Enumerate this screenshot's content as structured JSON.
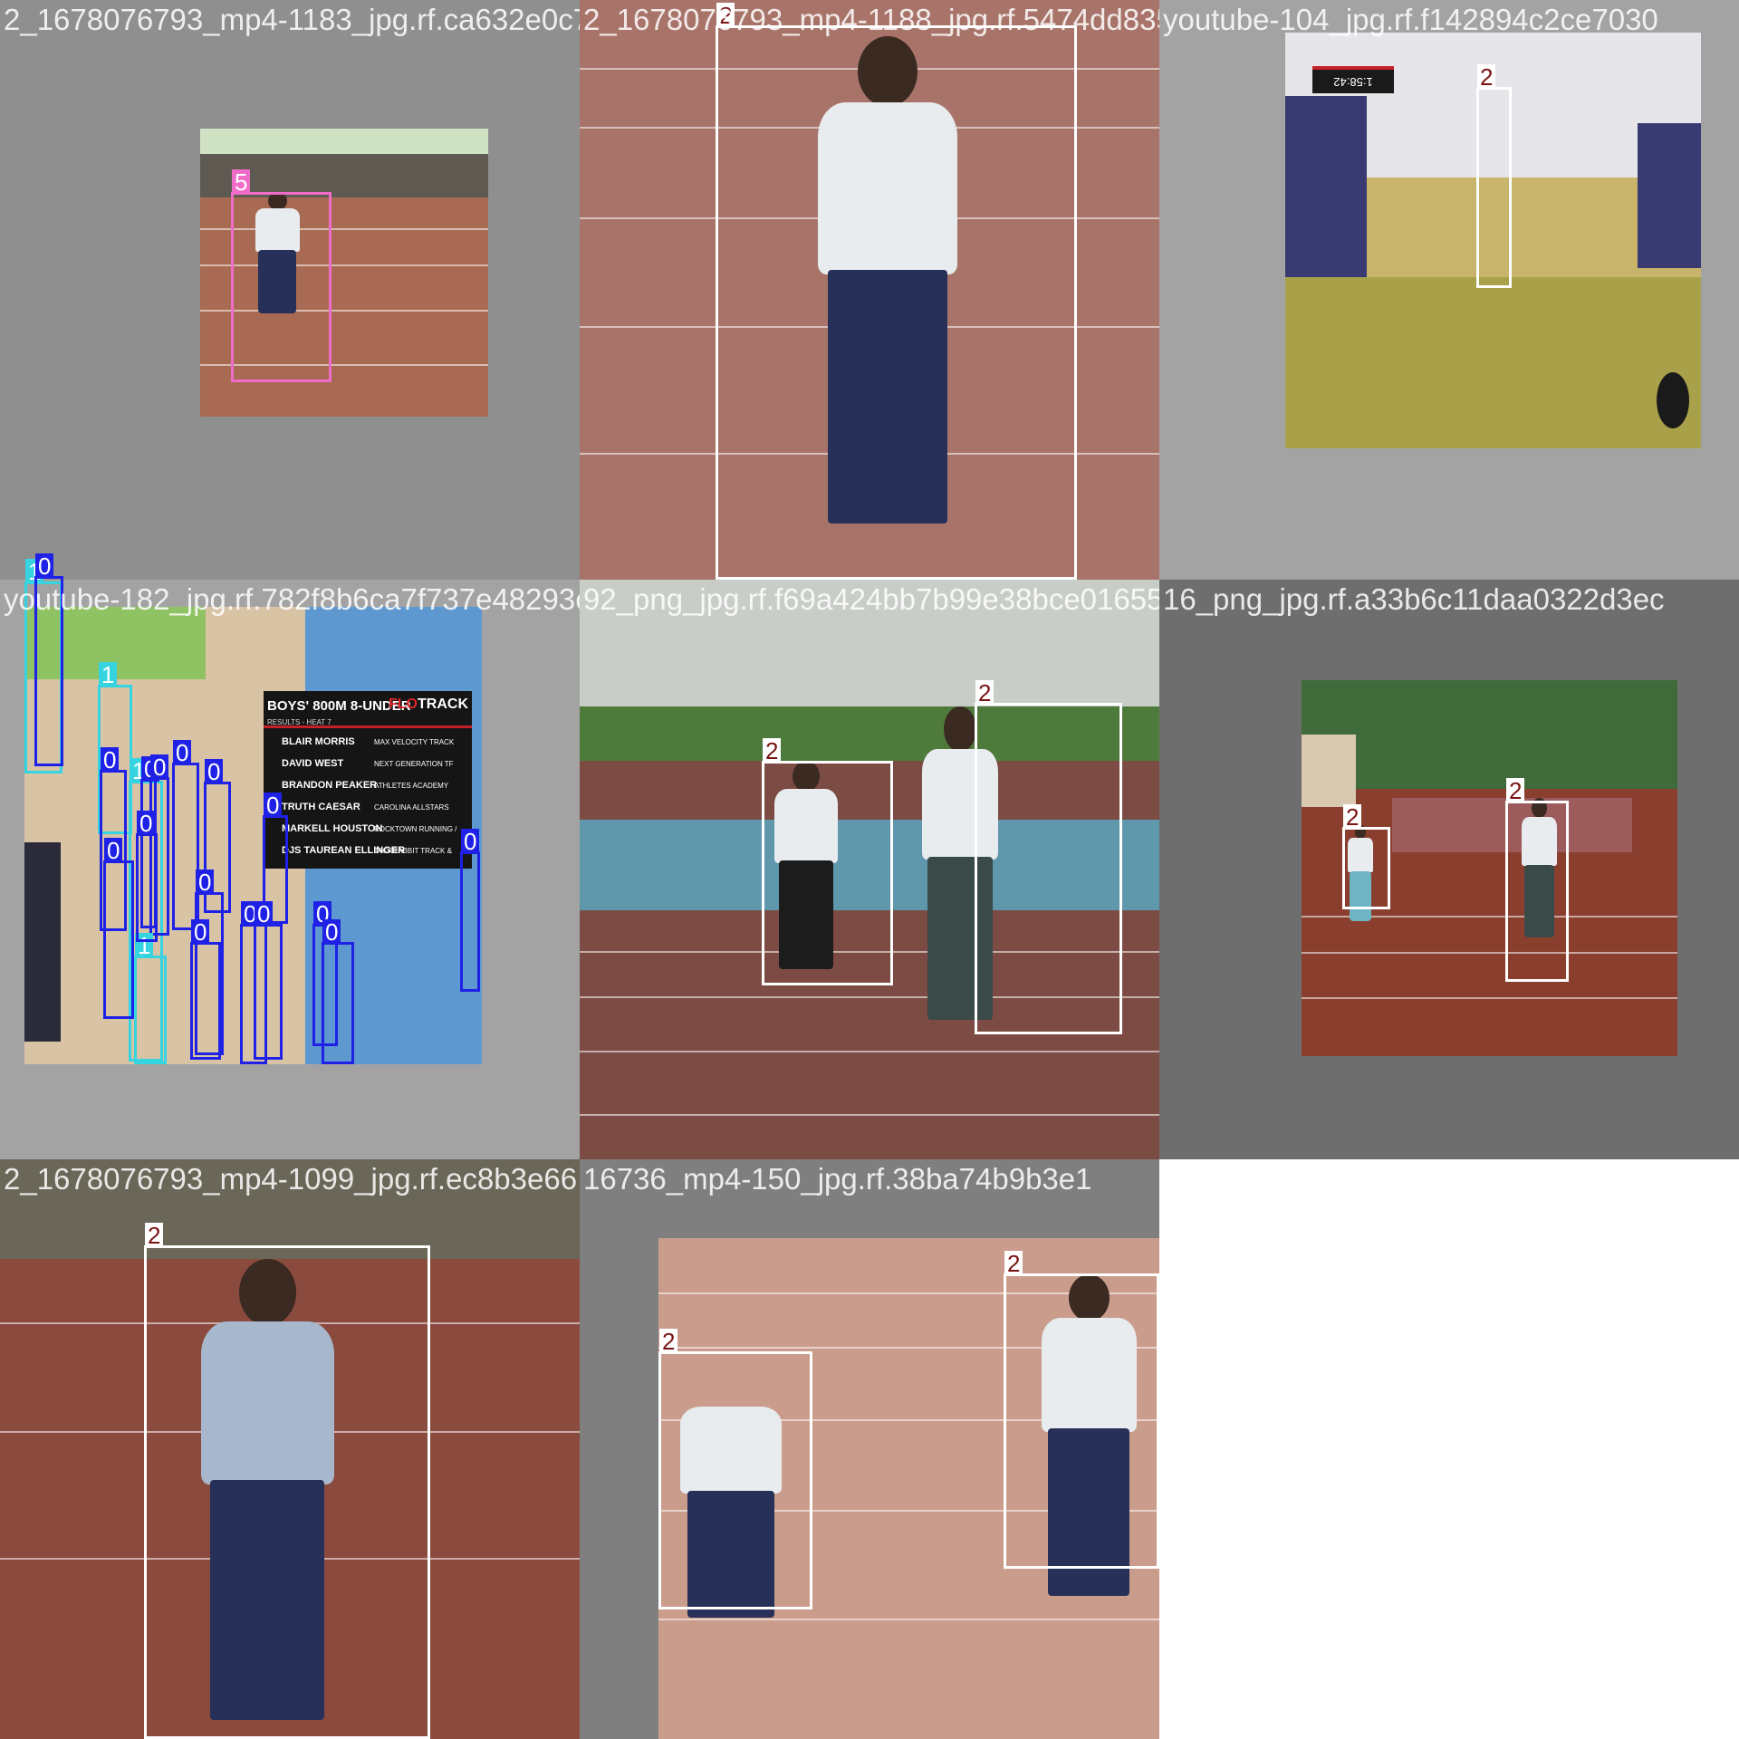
{
  "colors": {
    "class_0": "#1f22e6",
    "class_1": "#35d4e0",
    "class_2": "#ffffff",
    "class_5": "#ef6cc9",
    "label_2_text": "#7a1414",
    "pad": "#909090"
  },
  "tiles": [
    {
      "filename": "2_1678076793_mp4-1183_jpg.rf.ca632e0c786",
      "boxes": [
        {
          "label": "5"
        }
      ]
    },
    {
      "filename": "2_1678076793_mp4-1188_jpg.rf.5474dd8356",
      "boxes": [
        {
          "label": "2"
        }
      ]
    },
    {
      "filename": "youtube-104_jpg.rf.f142894c2ce7030",
      "overlay_text": "1:58:42",
      "boxes": [
        {
          "label": "2"
        }
      ]
    },
    {
      "filename": "youtube-182_jpg.rf.782f8b6ca7f737e48293c",
      "scoreboard": {
        "heading": "BOYS' 800M 8-UNDER",
        "brand_prefix": "FLO",
        "brand_suffix": "TRACK",
        "subheading": "RESULTS - HEAT 7",
        "rows": [
          {
            "name": "BLAIR MORRIS",
            "team": "MAX VELOCITY TRACK"
          },
          {
            "name": "DAVID WEST",
            "team": "NEXT GENERATION TF"
          },
          {
            "name": "BRANDON PEAKER",
            "team": "ATHLETES ACADEMY"
          },
          {
            "name": "TRUTH CAESAR",
            "team": "CAROLINA ALLSTARS"
          },
          {
            "name": "MARKELL HOUSTON",
            "team": "ROCKTOWN RUNNING /"
          },
          {
            "name": "DJS TAUREAN ELLINGER",
            "team": "JACKRABBIT TRACK &"
          }
        ]
      },
      "boxes": [
        {
          "label": "1"
        },
        {
          "label": "0"
        },
        {
          "label": "1"
        },
        {
          "label": "1"
        },
        {
          "label": "0"
        },
        {
          "label": "0"
        },
        {
          "label": "0"
        },
        {
          "label": "0"
        },
        {
          "label": "0"
        },
        {
          "label": "0"
        },
        {
          "label": "0"
        },
        {
          "label": "0"
        },
        {
          "label": "0"
        },
        {
          "label": "0"
        },
        {
          "label": "0"
        },
        {
          "label": "0"
        },
        {
          "label": "0"
        },
        {
          "label": "0"
        },
        {
          "label": "1"
        },
        {
          "label": "0"
        }
      ]
    },
    {
      "filename": "92_png_jpg.rf.f69a424bb7b99e38bce0165574",
      "boxes": [
        {
          "label": "2"
        },
        {
          "label": "2"
        }
      ]
    },
    {
      "filename": "16_png_jpg.rf.a33b6c11daa0322d3ec",
      "boxes": [
        {
          "label": "2"
        },
        {
          "label": "2"
        }
      ]
    },
    {
      "filename": "2_1678076793_mp4-1099_jpg.rf.ec8b3e66",
      "boxes": [
        {
          "label": "2"
        }
      ]
    },
    {
      "filename": "16736_mp4-150_jpg.rf.38ba74b9b3e1",
      "boxes": [
        {
          "label": "2"
        },
        {
          "label": "2"
        }
      ]
    }
  ]
}
